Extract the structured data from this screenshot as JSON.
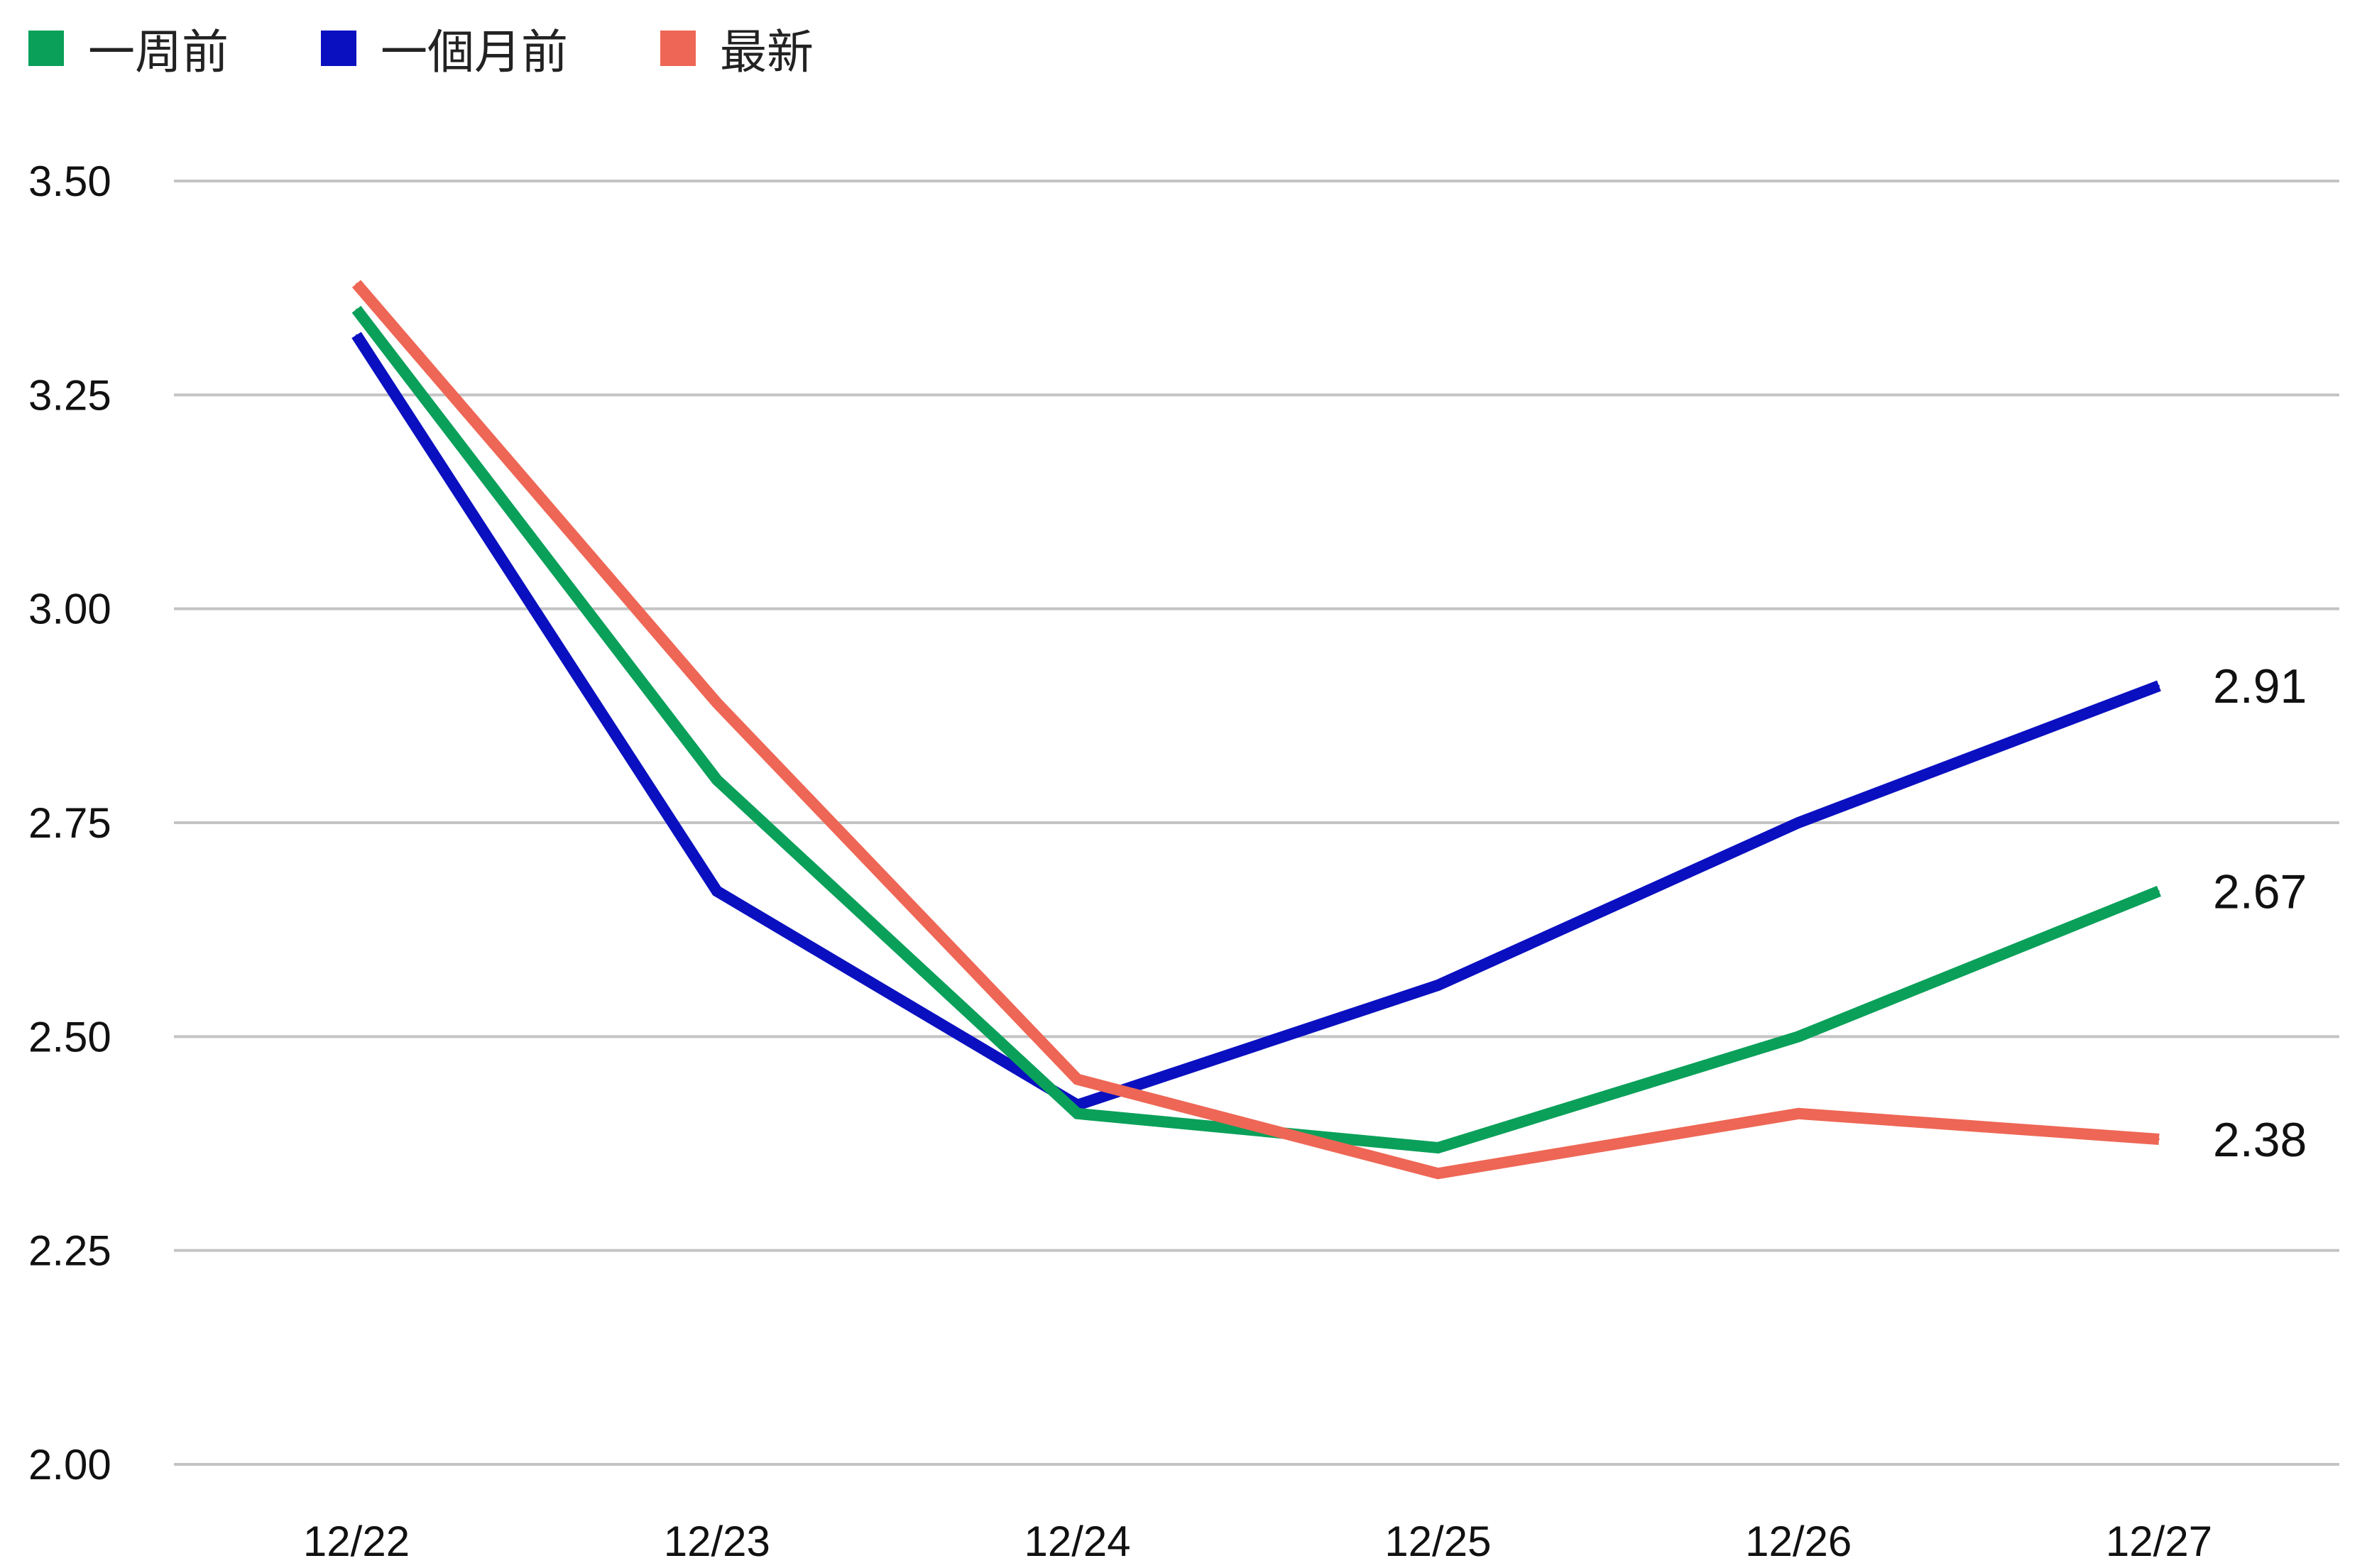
{
  "chart_data": {
    "type": "line",
    "categories": [
      "12/22",
      "12/23",
      "12/24",
      "12/25",
      "12/26",
      "12/27"
    ],
    "series": [
      {
        "name": "一周前",
        "color": "#0aa05a",
        "values": [
          3.35,
          2.8,
          2.41,
          2.37,
          2.5,
          2.67
        ]
      },
      {
        "name": "一個月前",
        "color": "#0a10c0",
        "values": [
          3.32,
          2.67,
          2.42,
          2.56,
          2.75,
          2.91
        ]
      },
      {
        "name": "最新",
        "color": "#ee6655",
        "values": [
          3.38,
          2.89,
          2.45,
          2.34,
          2.41,
          2.38
        ]
      }
    ],
    "end_labels": [
      "2.67",
      "2.91",
      "2.38"
    ],
    "y_ticks": [
      "2.00",
      "2.25",
      "2.50",
      "2.75",
      "3.00",
      "3.25",
      "3.50"
    ],
    "ylim": [
      2.0,
      3.5
    ],
    "grid": true,
    "legend_position": "top-left",
    "title": "",
    "xlabel": "",
    "ylabel": ""
  }
}
